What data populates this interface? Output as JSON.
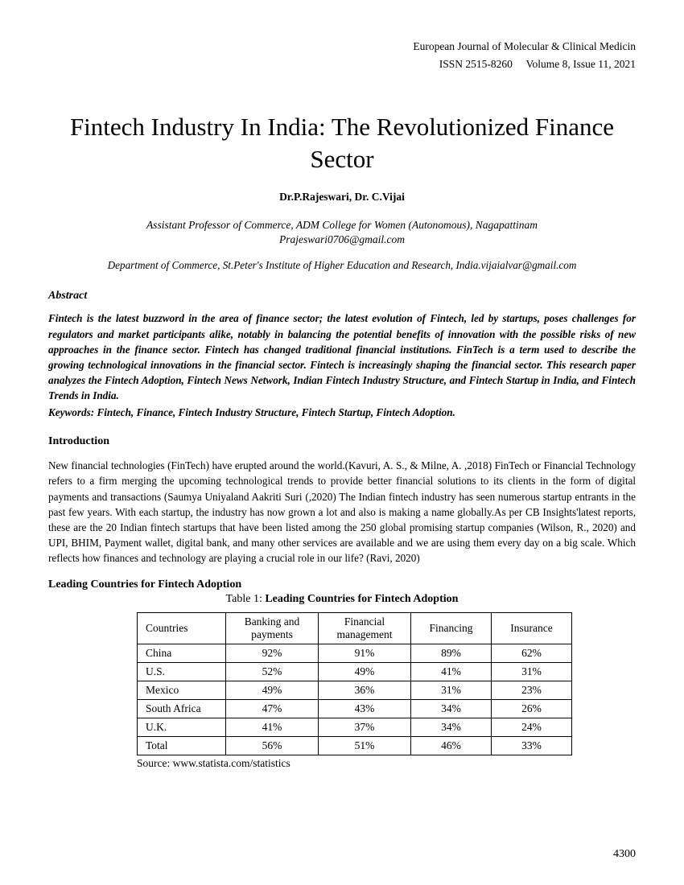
{
  "header": {
    "journal": "European Journal of Molecular & Clinical Medicin",
    "issn": "ISSN 2515-8260",
    "volume": "Volume 8, Issue 11, 2021"
  },
  "title": "Fintech Industry In India: The Revolutionized Finance Sector",
  "authors": "Dr.P.Rajeswari, Dr. C.Vijai",
  "affiliation1_line1": "Assistant Professor of Commerce, ADM College for Women (Autonomous), Nagapattinam",
  "affiliation1_line2": "Prajeswari0706@gmail.com",
  "affiliation2": "Department of Commerce, St.Peter's Institute of Higher Education and Research, India.vijaialvar@gmail.com",
  "abstract_heading": "Abstract",
  "abstract_text": "Fintech is the latest buzzword in the area of finance sector; the latest evolution of Fintech, led by startups, poses challenges for regulators and market participants alike, notably in balancing the potential benefits of innovation with the possible risks of new approaches in the finance sector. Fintech has changed traditional financial institutions. FinTech is a term used to describe the growing technological innovations in the financial sector. Fintech is increasingly shaping the financial sector. This research paper analyzes the Fintech Adoption, Fintech News Network, Indian Fintech Industry Structure, and Fintech Startup in India, and Fintech Trends in India.",
  "keywords": "Keywords: Fintech, Finance, Fintech Industry Structure, Fintech Startup, Fintech Adoption.",
  "intro_heading": "Introduction",
  "intro_text": "New financial technologies (FinTech) have erupted around the world.(Kavuri, A. S., & Milne, A. ,2018) FinTech or Financial Technology refers to a firm merging the upcoming technological trends to provide better financial solutions to its clients in the form of digital payments and transactions (Saumya Uniyaland Aakriti Suri (,2020) The Indian fintech industry has seen numerous startup entrants in the past few years. With each startup, the industry has now grown a lot and also is making a name globally.As per CB Insights'latest reports, these are the 20 Indian fintech startups that have been listed among the 250 global promising startup companies (Wilson, R., 2020) and UPI, BHIM, Payment wallet, digital bank, and many other services are available and we are using them every day on a big scale. Which reflects how finances and technology are playing a crucial role in our life? (Ravi, 2020)",
  "table_section_heading": "Leading Countries for Fintech Adoption",
  "table_caption_prefix": "Table 1: ",
  "table_caption_title": "Leading Countries for Fintech Adoption",
  "table": {
    "columns": [
      "Countries",
      "Banking and payments",
      "Financial management",
      "Financing",
      "Insurance"
    ],
    "rows": [
      [
        "China",
        "92%",
        "91%",
        "89%",
        "62%"
      ],
      [
        "U.S.",
        "52%",
        "49%",
        "41%",
        "31%"
      ],
      [
        "Mexico",
        "49%",
        "36%",
        "31%",
        "23%"
      ],
      [
        "South Africa",
        "47%",
        "43%",
        "34%",
        "26%"
      ],
      [
        "U.K.",
        "41%",
        "37%",
        "34%",
        "24%"
      ],
      [
        "Total",
        "56%",
        "51%",
        "46%",
        "33%"
      ]
    ],
    "source": "Source: www.statista.com/statistics"
  },
  "page_number": "4300"
}
